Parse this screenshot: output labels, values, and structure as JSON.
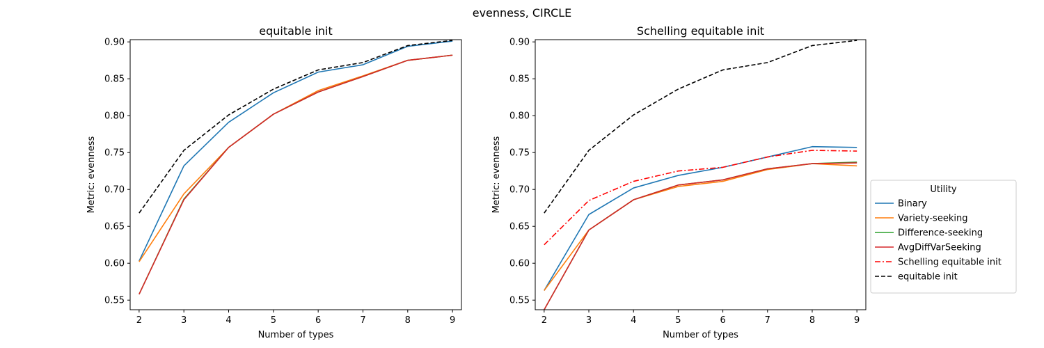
{
  "figure": {
    "suptitle": "evenness, CIRCLE"
  },
  "chart_data": [
    {
      "type": "line",
      "title": "equitable init",
      "xlabel": "Number of types",
      "ylabel": "Metric: evenness",
      "x": [
        2,
        3,
        4,
        5,
        6,
        7,
        8,
        9
      ],
      "xlim": [
        1.8,
        9.2
      ],
      "ylim": [
        0.537,
        0.903
      ],
      "yticks": [
        0.55,
        0.6,
        0.65,
        0.7,
        0.75,
        0.8,
        0.85,
        0.9
      ],
      "ytick_labels": [
        "0.55",
        "0.60",
        "0.65",
        "0.70",
        "0.75",
        "0.80",
        "0.85",
        "0.90"
      ],
      "series": [
        {
          "name": "Binary",
          "color": "#1f77b4",
          "dash": "solid",
          "values": [
            0.603,
            0.732,
            0.791,
            0.831,
            0.859,
            0.869,
            0.894,
            0.901
          ]
        },
        {
          "name": "Variety-seeking",
          "color": "#ff7f0e",
          "dash": "solid",
          "values": [
            0.602,
            0.694,
            0.757,
            0.802,
            0.834,
            0.854,
            0.875,
            0.882
          ]
        },
        {
          "name": "Difference-seeking",
          "color": "#2ca02c",
          "dash": "solid",
          "values": [
            0.558,
            0.687,
            0.757,
            0.802,
            0.832,
            0.853,
            0.875,
            0.882
          ]
        },
        {
          "name": "AvgDiffVarSeeking",
          "color": "#d62728",
          "dash": "solid",
          "values": [
            0.558,
            0.686,
            0.757,
            0.802,
            0.832,
            0.853,
            0.875,
            0.882
          ]
        },
        {
          "name": "equitable init",
          "color": "#000000",
          "dash": "dashed",
          "values": [
            0.668,
            0.753,
            0.801,
            0.836,
            0.862,
            0.872,
            0.895,
            0.902
          ]
        }
      ]
    },
    {
      "type": "line",
      "title": "Schelling equitable init",
      "xlabel": "Number of types",
      "ylabel": "Metric: evenness",
      "x": [
        2,
        3,
        4,
        5,
        6,
        7,
        8,
        9
      ],
      "xlim": [
        1.8,
        9.2
      ],
      "ylim": [
        0.537,
        0.903
      ],
      "yticks": [
        0.55,
        0.6,
        0.65,
        0.7,
        0.75,
        0.8,
        0.85,
        0.9
      ],
      "ytick_labels": [
        "0.55",
        "0.60",
        "0.65",
        "0.70",
        "0.75",
        "0.80",
        "0.85",
        "0.90"
      ],
      "series": [
        {
          "name": "Binary",
          "color": "#1f77b4",
          "dash": "solid",
          "values": [
            0.563,
            0.666,
            0.702,
            0.719,
            0.73,
            0.744,
            0.758,
            0.757
          ]
        },
        {
          "name": "Variety-seeking",
          "color": "#ff7f0e",
          "dash": "solid",
          "values": [
            0.563,
            0.645,
            0.686,
            0.704,
            0.711,
            0.727,
            0.735,
            0.732
          ]
        },
        {
          "name": "Difference-seeking",
          "color": "#2ca02c",
          "dash": "solid",
          "values": [
            0.537,
            0.645,
            0.686,
            0.706,
            0.713,
            0.728,
            0.735,
            0.737
          ]
        },
        {
          "name": "AvgDiffVarSeeking",
          "color": "#d62728",
          "dash": "solid",
          "values": [
            0.537,
            0.645,
            0.686,
            0.706,
            0.713,
            0.728,
            0.735,
            0.736
          ]
        },
        {
          "name": "Schelling equitable init",
          "color": "#ff0000",
          "dash": "dashdot",
          "values": [
            0.625,
            0.685,
            0.711,
            0.725,
            0.73,
            0.744,
            0.753,
            0.752
          ]
        },
        {
          "name": "equitable init",
          "color": "#000000",
          "dash": "dashed",
          "values": [
            0.668,
            0.753,
            0.801,
            0.836,
            0.862,
            0.872,
            0.895,
            0.902
          ]
        }
      ]
    }
  ],
  "legend": {
    "title": "Utility",
    "placement": "right of second panel, vertically centered",
    "entries": [
      {
        "label": "Binary",
        "color": "#1f77b4",
        "dash": "solid"
      },
      {
        "label": "Variety-seeking",
        "color": "#ff7f0e",
        "dash": "solid"
      },
      {
        "label": "Difference-seeking",
        "color": "#2ca02c",
        "dash": "solid"
      },
      {
        "label": "AvgDiffVarSeeking",
        "color": "#d62728",
        "dash": "solid"
      },
      {
        "label": "Schelling equitable init",
        "color": "#ff0000",
        "dash": "dashdot"
      },
      {
        "label": "equitable init",
        "color": "#000000",
        "dash": "dashed"
      }
    ]
  }
}
